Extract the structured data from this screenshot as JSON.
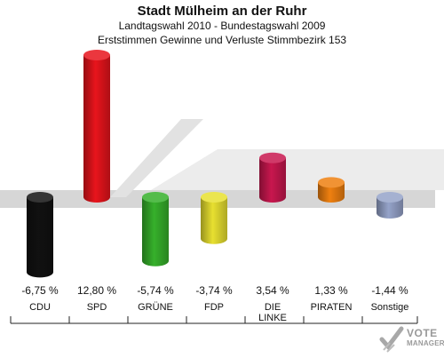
{
  "header": {
    "title": "Stadt Mülheim an der Ruhr",
    "subtitle": "Landtagswahl 2010 - Bundestagswahl 2009",
    "subtitle2": "Erststimmen Gewinne und Verluste Stimmbezirk 153"
  },
  "logo": {
    "line1": "VOTE",
    "line2": "MANAGER"
  },
  "chart_data": {
    "type": "bar",
    "title": "Stadt Mülheim an der Ruhr",
    "subtitle": "Landtagswahl 2010 - Bundestagswahl 2009 / Erststimmen Gewinne und Verluste Stimmbezirk 153",
    "categories": [
      "CDU",
      "SPD",
      "GRÜNE",
      "FDP",
      "DIE LINKE",
      "PIRATEN",
      "Sonstige"
    ],
    "values": [
      -6.75,
      12.8,
      -5.74,
      -3.74,
      3.54,
      1.33,
      -1.44
    ],
    "value_labels": [
      "-6,75 %",
      "12,80 %",
      "-5,74 %",
      "-3,74 %",
      "3,54 %",
      "1,33 %",
      "-1,44 %"
    ],
    "colors": [
      "#111111",
      "#e8141c",
      "#36b02b",
      "#e8e030",
      "#c8174e",
      "#ef8010",
      "#95a3c9"
    ],
    "xlabel": "",
    "ylabel": "",
    "grid": false,
    "legend": "none"
  }
}
